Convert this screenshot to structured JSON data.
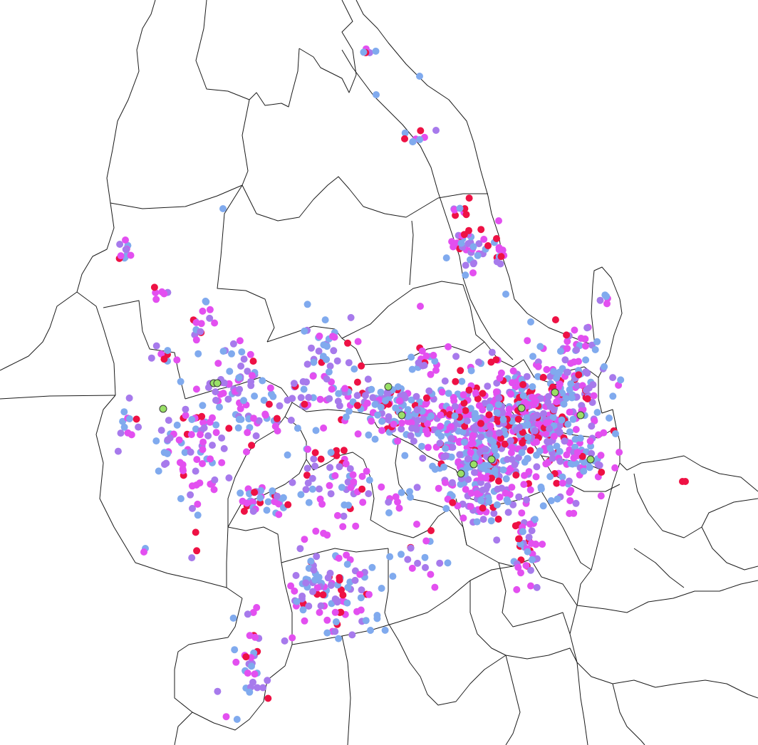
{
  "map": {
    "basemap": "administrative-boundaries",
    "background_color": "#ffffff",
    "boundary_color": "#1a1a1a",
    "categories": [
      {
        "key": "blue",
        "color": "#80aaee"
      },
      {
        "key": "violet",
        "color": "#a77aec"
      },
      {
        "key": "pink",
        "color": "#e34ff0"
      },
      {
        "key": "red",
        "color": "#ee1144"
      },
      {
        "key": "green",
        "color": "#99e066",
        "outlined": true
      }
    ]
  }
}
